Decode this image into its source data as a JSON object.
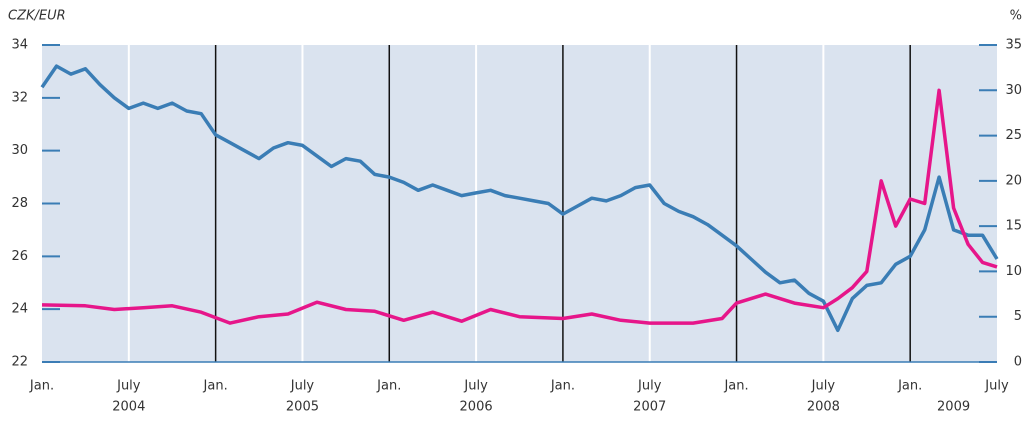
{
  "chart_data": {
    "type": "line",
    "y_label": "CZK/EUR",
    "y2_label": "%",
    "xlim": [
      0,
      66
    ],
    "xticks": [
      {
        "value": 0,
        "label": "Jan."
      },
      {
        "value": 6,
        "label": "July"
      },
      {
        "value": 12,
        "label": "Jan."
      },
      {
        "value": 18,
        "label": "July"
      },
      {
        "value": 24,
        "label": "Jan."
      },
      {
        "value": 30,
        "label": "July"
      },
      {
        "value": 36,
        "label": "Jan."
      },
      {
        "value": 42,
        "label": "July"
      },
      {
        "value": 48,
        "label": "Jan."
      },
      {
        "value": 54,
        "label": "July"
      },
      {
        "value": 60,
        "label": "Jan."
      },
      {
        "value": 66,
        "label": "July"
      }
    ],
    "year_labels": [
      {
        "value": 6,
        "label": "2004"
      },
      {
        "value": 18,
        "label": "2005"
      },
      {
        "value": 30,
        "label": "2006"
      },
      {
        "value": 42,
        "label": "2007"
      },
      {
        "value": 54,
        "label": "2008"
      },
      {
        "value": 63,
        "label": "2009"
      }
    ],
    "ylim": [
      22,
      34
    ],
    "yticks": [
      22,
      24,
      26,
      28,
      30,
      32,
      34
    ],
    "y2lim": [
      0,
      35
    ],
    "y2ticks": [
      0,
      5,
      10,
      15,
      20,
      25,
      30,
      35
    ],
    "series": [
      {
        "color": "#3a7db5",
        "x": [
          0,
          1,
          2,
          3,
          4,
          5,
          6,
          7,
          8,
          9,
          10,
          11,
          12,
          13,
          14,
          15,
          16,
          17,
          18,
          19,
          20,
          21,
          22,
          23,
          24,
          25,
          26,
          27,
          28,
          29,
          30,
          31,
          32,
          33,
          34,
          35,
          36,
          37,
          38,
          39,
          40,
          41,
          42,
          43,
          44,
          45,
          46,
          47,
          48,
          49,
          50,
          51,
          52,
          53,
          54,
          55,
          56,
          57,
          58,
          59,
          60,
          61,
          62,
          63,
          64,
          65,
          66
        ],
        "values": [
          32.4,
          33.2,
          32.9,
          33.1,
          32.5,
          32.0,
          31.6,
          31.8,
          31.6,
          31.8,
          31.5,
          31.4,
          30.6,
          30.3,
          30.0,
          29.7,
          30.1,
          30.3,
          30.2,
          29.8,
          29.4,
          29.7,
          29.6,
          29.1,
          29.0,
          28.8,
          28.5,
          28.7,
          28.5,
          28.3,
          28.4,
          28.5,
          28.3,
          28.2,
          28.1,
          28.0,
          27.6,
          27.9,
          28.2,
          28.1,
          28.3,
          28.6,
          28.7,
          28.0,
          27.7,
          27.5,
          27.2,
          26.8,
          26.4,
          25.9,
          25.4,
          25.0,
          25.1,
          24.6,
          24.3,
          23.2,
          24.4,
          24.9,
          25.0,
          25.7,
          26.0,
          27.0,
          29.0,
          27.0,
          26.8,
          26.8,
          25.9
        ]
      },
      {
        "color": "#e6168a",
        "axis": "y2",
        "x": [
          0,
          3,
          5,
          7,
          9,
          11,
          13,
          15,
          17,
          19,
          21,
          23,
          25,
          27,
          29,
          31,
          33,
          36,
          38,
          40,
          42,
          45,
          47,
          48,
          50,
          52,
          54,
          55,
          56,
          57,
          58,
          59,
          60,
          61,
          62,
          63,
          64,
          65,
          66
        ],
        "values": [
          6.3,
          6.2,
          5.8,
          6.0,
          6.2,
          5.5,
          4.3,
          5.0,
          5.3,
          6.6,
          5.8,
          5.6,
          4.6,
          5.5,
          4.5,
          5.8,
          5.0,
          4.8,
          5.3,
          4.6,
          4.3,
          4.3,
          4.8,
          6.5,
          7.5,
          6.5,
          6.0,
          7.0,
          8.2,
          10.0,
          20.0,
          15.0,
          18.0,
          17.5,
          30.0,
          17.0,
          13.0,
          11.0,
          10.5
        ]
      }
    ]
  }
}
